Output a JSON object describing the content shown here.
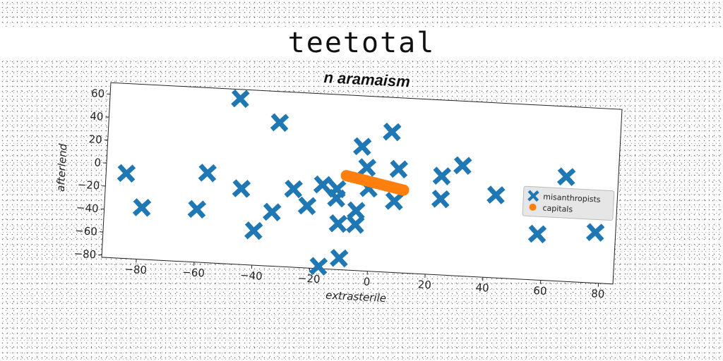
{
  "figure_title": "teetotal",
  "chart_data": {
    "type": "scatter",
    "title": "n aramaism",
    "xlabel": "extrasterile",
    "ylabel": "afterlend",
    "xlim": [
      -92,
      85
    ],
    "ylim": [
      -82,
      70
    ],
    "xticks": [
      -80,
      -60,
      -40,
      -20,
      0,
      20,
      40,
      60,
      80
    ],
    "yticks": [
      -80,
      -60,
      -40,
      -20,
      0,
      20,
      40,
      60
    ],
    "grid": false,
    "legend_position": "center-right",
    "series": [
      {
        "name": "misanthropists",
        "marker": "X",
        "color": "#1f77b4",
        "points": [
          [
            -85,
            -8
          ],
          [
            -79,
            -37
          ],
          [
            -60,
            -36
          ],
          [
            -57,
            -4
          ],
          [
            -47,
            62
          ],
          [
            -45,
            -16
          ],
          [
            -40,
            -52
          ],
          [
            -34,
            -35
          ],
          [
            -33,
            43
          ],
          [
            -27,
            -14
          ],
          [
            -22,
            -28
          ],
          [
            -17,
            -9
          ],
          [
            -17,
            -80
          ],
          [
            -12,
            -12
          ],
          [
            -12,
            -20
          ],
          [
            -11,
            -42
          ],
          [
            -10,
            -72
          ],
          [
            -5,
            -42
          ],
          [
            -5,
            -30
          ],
          [
            -4,
            26
          ],
          [
            -2,
            8
          ],
          [
            -1,
            -10
          ],
          [
            6,
            40
          ],
          [
            8,
            -20
          ],
          [
            9,
            8
          ],
          [
            24,
            4
          ],
          [
            24,
            -16
          ],
          [
            31,
            14
          ],
          [
            43,
            -10
          ],
          [
            58,
            -42
          ],
          [
            67,
            9
          ],
          [
            78,
            -38
          ]
        ]
      },
      {
        "name": "capitals",
        "marker": "o",
        "color": "#ff7f0e",
        "points": [
          [
            -9,
            0
          ],
          [
            -8,
            -0.5
          ],
          [
            -7,
            -1
          ],
          [
            -6,
            -1.5
          ],
          [
            -5,
            -2
          ],
          [
            -4,
            -2.5
          ],
          [
            -3,
            -3
          ],
          [
            -2,
            -3.5
          ],
          [
            -1,
            -4
          ],
          [
            0,
            -4.5
          ],
          [
            1,
            -5
          ],
          [
            2,
            -5.5
          ],
          [
            3,
            -6
          ],
          [
            4,
            -6.5
          ],
          [
            5,
            -7
          ],
          [
            6,
            -7.5
          ],
          [
            7,
            -8
          ],
          [
            8,
            -8.5
          ],
          [
            9,
            -9
          ],
          [
            10,
            -9.5
          ],
          [
            11,
            -10
          ]
        ]
      }
    ]
  }
}
